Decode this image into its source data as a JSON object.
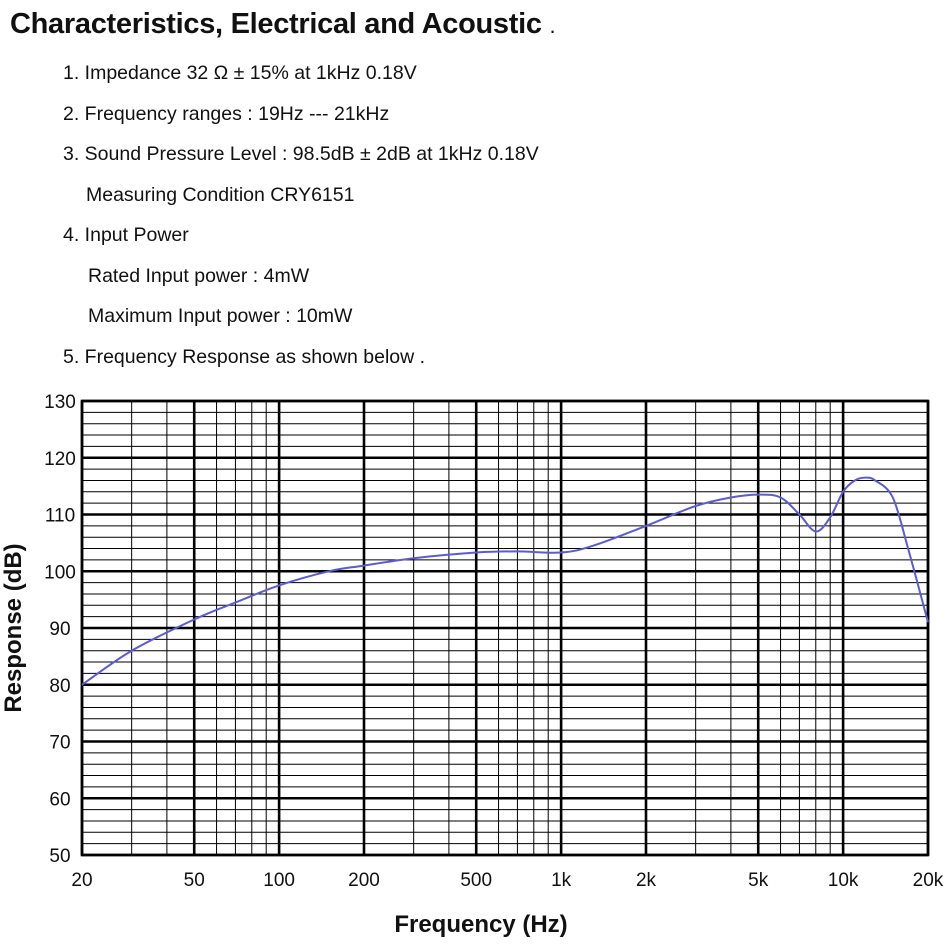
{
  "header": {
    "title": "Characteristics, Electrical and Acoustic",
    "title_suffix": "."
  },
  "specs": [
    "1. Impedance   32 Ω ± 15% at 1kHz 0.18V",
    "2. Frequency ranges : 19Hz --- 21kHz",
    "3. Sound Pressure Level : 98.5dB ± 2dB at 1kHz 0.18V",
    "Measuring Condition CRY6151",
    "4. Input Power",
    "Rated Input power : 4mW",
    "Maximum Input power : 10mW",
    "5. Frequency Response as shown below ."
  ],
  "chart_data": {
    "type": "line",
    "xlabel": "Frequency (Hz)",
    "ylabel": "Response (dB)",
    "xscale": "log",
    "xlim": [
      20,
      20000
    ],
    "ylim": [
      50,
      130
    ],
    "x_ticks": [
      {
        "value": 20,
        "label": "20"
      },
      {
        "value": 50,
        "label": "50"
      },
      {
        "value": 100,
        "label": "100"
      },
      {
        "value": 200,
        "label": "200"
      },
      {
        "value": 500,
        "label": "500"
      },
      {
        "value": 1000,
        "label": "1k"
      },
      {
        "value": 2000,
        "label": "2k"
      },
      {
        "value": 5000,
        "label": "5k"
      },
      {
        "value": 10000,
        "label": "10k"
      },
      {
        "value": 20000,
        "label": "20k"
      }
    ],
    "y_ticks": [
      {
        "value": 50,
        "label": "50"
      },
      {
        "value": 60,
        "label": "60"
      },
      {
        "value": 70,
        "label": "70"
      },
      {
        "value": 80,
        "label": "80"
      },
      {
        "value": 90,
        "label": "90"
      },
      {
        "value": 100,
        "label": "100"
      },
      {
        "value": 110,
        "label": "110"
      },
      {
        "value": 120,
        "label": "120"
      },
      {
        "value": 130,
        "label": "130"
      }
    ],
    "grid": true,
    "line_color": "#5b5bd6",
    "series": [
      {
        "x": [
          20,
          30,
          50,
          70,
          100,
          150,
          200,
          300,
          500,
          700,
          1000,
          1300,
          2000,
          3000,
          4000,
          5000,
          6000,
          7000,
          8000,
          9000,
          10000,
          11000,
          12000,
          13000,
          15000,
          17000,
          20000
        ],
        "y": [
          80,
          86,
          91.5,
          94.5,
          97.5,
          100,
          101,
          102.3,
          103.3,
          103.5,
          103.3,
          104.5,
          108,
          111.5,
          113,
          113.5,
          113,
          110,
          107,
          109.5,
          114,
          116,
          116.5,
          116,
          113,
          104,
          91
        ]
      }
    ]
  }
}
